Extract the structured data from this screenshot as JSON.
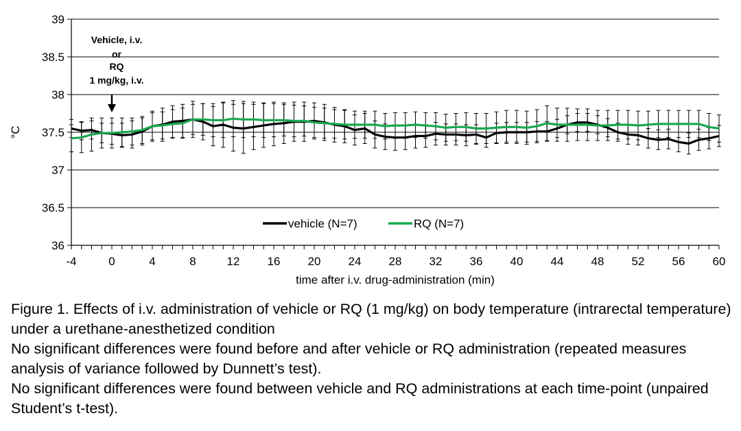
{
  "chart_data": {
    "type": "line",
    "title": "",
    "xlabel": "time after i.v. drug-administration (min)",
    "ylabel": "°C",
    "xlim": [
      -4,
      60
    ],
    "ylim": [
      36,
      39
    ],
    "x_ticks": [
      "-4",
      "0",
      "4",
      "8",
      "12",
      "16",
      "20",
      "24",
      "28",
      "32",
      "36",
      "40",
      "44",
      "48",
      "52",
      "56",
      "60"
    ],
    "y_ticks": [
      "36",
      "36.5",
      "37",
      "37.5",
      "38",
      "38.5",
      "39"
    ],
    "grid": "horizontal",
    "legend_position": "bottom-center",
    "annotation": {
      "lines": [
        "Vehicle, i.v.",
        "or",
        "RQ",
        "1 mg/kg, i.v."
      ],
      "x": 0
    },
    "x": [
      -4,
      -3,
      -2,
      -1,
      0,
      1,
      2,
      3,
      4,
      5,
      6,
      7,
      8,
      9,
      10,
      11,
      12,
      13,
      14,
      15,
      16,
      17,
      18,
      19,
      20,
      21,
      22,
      23,
      24,
      25,
      26,
      27,
      28,
      29,
      30,
      31,
      32,
      33,
      34,
      35,
      36,
      37,
      38,
      39,
      40,
      41,
      42,
      43,
      44,
      45,
      46,
      47,
      48,
      49,
      50,
      51,
      52,
      53,
      54,
      55,
      56,
      57,
      58,
      59,
      60
    ],
    "series": [
      {
        "name": "vehicle (N=7)",
        "color": "#000000",
        "values": [
          37.55,
          37.52,
          37.53,
          37.49,
          37.48,
          37.46,
          37.47,
          37.51,
          37.58,
          37.6,
          37.64,
          37.65,
          37.67,
          37.64,
          37.58,
          37.6,
          37.56,
          37.55,
          37.57,
          37.59,
          37.61,
          37.62,
          37.64,
          37.64,
          37.65,
          37.63,
          37.6,
          37.58,
          37.53,
          37.55,
          37.47,
          37.44,
          37.43,
          37.43,
          37.45,
          37.45,
          37.48,
          37.47,
          37.47,
          37.46,
          37.47,
          37.43,
          37.49,
          37.5,
          37.5,
          37.5,
          37.51,
          37.51,
          37.55,
          37.6,
          37.63,
          37.63,
          37.6,
          37.56,
          37.5,
          37.47,
          37.46,
          37.42,
          37.4,
          37.41,
          37.37,
          37.35,
          37.4,
          37.42,
          37.45
        ],
        "error": [
          0.12,
          0.12,
          0.12,
          0.13,
          0.14,
          0.16,
          0.18,
          0.18,
          0.2,
          0.22,
          0.21,
          0.22,
          0.24,
          0.24,
          0.26,
          0.3,
          0.31,
          0.33,
          0.3,
          0.29,
          0.29,
          0.27,
          0.26,
          0.26,
          0.24,
          0.24,
          0.23,
          0.22,
          0.2,
          0.2,
          0.18,
          0.17,
          0.17,
          0.16,
          0.16,
          0.15,
          0.15,
          0.14,
          0.14,
          0.14,
          0.13,
          0.13,
          0.13,
          0.13,
          0.13,
          0.13,
          0.13,
          0.13,
          0.12,
          0.12,
          0.12,
          0.12,
          0.12,
          0.12,
          0.12,
          0.13,
          0.13,
          0.13,
          0.13,
          0.13,
          0.13,
          0.14,
          0.14,
          0.14,
          0.14
        ]
      },
      {
        "name": "RQ (N=7)",
        "color": "#1aa84e",
        "values": [
          37.42,
          37.43,
          37.47,
          37.49,
          37.49,
          37.5,
          37.51,
          37.53,
          37.58,
          37.59,
          37.61,
          37.62,
          37.67,
          37.67,
          37.66,
          37.66,
          37.68,
          37.67,
          37.67,
          37.66,
          37.66,
          37.66,
          37.65,
          37.65,
          37.63,
          37.62,
          37.61,
          37.6,
          37.6,
          37.6,
          37.6,
          37.58,
          37.59,
          37.59,
          37.6,
          37.59,
          37.58,
          37.56,
          37.57,
          37.57,
          37.55,
          37.55,
          37.56,
          37.57,
          37.57,
          37.56,
          37.58,
          37.62,
          37.6,
          37.6,
          37.6,
          37.6,
          37.59,
          37.59,
          37.6,
          37.6,
          37.59,
          37.6,
          37.61,
          37.61,
          37.61,
          37.61,
          37.61,
          37.57,
          37.55
        ],
        "error": [
          0.18,
          0.2,
          0.22,
          0.2,
          0.2,
          0.19,
          0.18,
          0.18,
          0.18,
          0.18,
          0.19,
          0.2,
          0.2,
          0.21,
          0.22,
          0.23,
          0.24,
          0.24,
          0.23,
          0.23,
          0.22,
          0.21,
          0.21,
          0.2,
          0.2,
          0.2,
          0.19,
          0.19,
          0.18,
          0.18,
          0.18,
          0.17,
          0.17,
          0.17,
          0.17,
          0.17,
          0.18,
          0.18,
          0.18,
          0.19,
          0.2,
          0.2,
          0.21,
          0.22,
          0.22,
          0.22,
          0.22,
          0.23,
          0.22,
          0.22,
          0.21,
          0.21,
          0.2,
          0.2,
          0.19,
          0.19,
          0.19,
          0.18,
          0.18,
          0.18,
          0.18,
          0.18,
          0.18,
          0.18,
          0.18
        ]
      }
    ]
  },
  "caption": {
    "line1": "Figure 1. Effects of i.v. administration of vehicle or RQ (1 mg/kg) on body temperature (intrarectal temperature) under a urethane-anesthetized condition",
    "line2": "No significant differences were found before and after vehicle or RQ administration (repeated measures analysis of variance followed by Dunnett’s test).",
    "line3": "No significant differences were found between vehicle and RQ administrations at each time-point (unpaired Student’s t-test)."
  }
}
